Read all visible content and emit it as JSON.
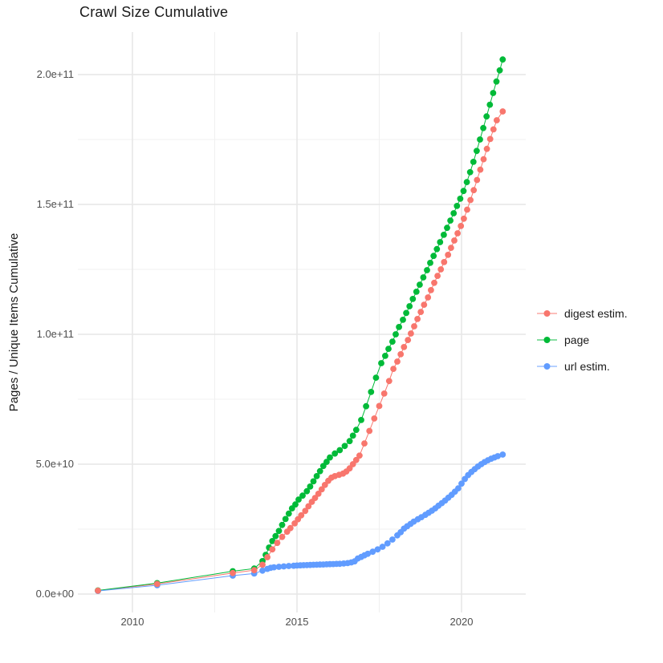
{
  "chart_data": {
    "type": "line",
    "title": "Crawl Size Cumulative",
    "xlabel": "",
    "ylabel": "Pages / Unique Items Cumulative",
    "legend_position": "right",
    "grid": true,
    "background_color": "#FFFFFF",
    "x_ticks": [
      {
        "label": "2010",
        "year": 2010
      },
      {
        "label": "2015",
        "year": 2015
      },
      {
        "label": "2020",
        "year": 2020
      }
    ],
    "x_minor_ticks": [
      2012.5,
      2017.5
    ],
    "y_ticks": [
      {
        "label": "0.0e+00",
        "v": 0
      },
      {
        "label": "5.0e+10",
        "v": 50
      },
      {
        "label": "1.0e+11",
        "v": 100
      },
      {
        "label": "1.5e+11",
        "v": 150
      },
      {
        "label": "2.0e+11",
        "v": 200
      }
    ],
    "y_unit_note": "values in billions of pages (1e9)",
    "xlim": [
      2008.33,
      2021.86
    ],
    "ylim_e9": [
      -9,
      216
    ],
    "series": [
      {
        "name": "digest estim.",
        "color": "#F8766D",
        "points": [
          [
            2008.95,
            1.3
          ],
          [
            2010.75,
            3.9
          ],
          [
            2013.05,
            8.1
          ],
          [
            2013.7,
            9.2
          ],
          [
            2013.95,
            11.3
          ],
          [
            2014.1,
            14.2
          ],
          [
            2014.25,
            17.2
          ],
          [
            2014.4,
            19.7
          ],
          [
            2014.55,
            22.0
          ],
          [
            2014.7,
            24.0
          ],
          [
            2014.8,
            25.4
          ],
          [
            2014.93,
            27.2
          ],
          [
            2015.03,
            28.8
          ],
          [
            2015.13,
            30.3
          ],
          [
            2015.25,
            32.0
          ],
          [
            2015.35,
            33.8
          ],
          [
            2015.45,
            35.5
          ],
          [
            2015.55,
            37.0
          ],
          [
            2015.65,
            38.6
          ],
          [
            2015.75,
            40.3
          ],
          [
            2015.85,
            42.0
          ],
          [
            2015.95,
            43.6
          ],
          [
            2016.05,
            44.8
          ],
          [
            2016.15,
            45.4
          ],
          [
            2016.28,
            45.9
          ],
          [
            2016.4,
            46.4
          ],
          [
            2016.5,
            47.2
          ],
          [
            2016.6,
            48.4
          ],
          [
            2016.7,
            50.0
          ],
          [
            2016.8,
            51.6
          ],
          [
            2016.9,
            53.3
          ],
          [
            2017.05,
            58.0
          ],
          [
            2017.2,
            62.8
          ],
          [
            2017.35,
            67.6
          ],
          [
            2017.5,
            72.4
          ],
          [
            2017.65,
            77.2
          ],
          [
            2017.8,
            82.0
          ],
          [
            2017.93,
            86.7
          ],
          [
            2018.05,
            89.5
          ],
          [
            2018.15,
            92.3
          ],
          [
            2018.25,
            95.1
          ],
          [
            2018.37,
            97.8
          ],
          [
            2018.46,
            100.3
          ],
          [
            2018.56,
            103.1
          ],
          [
            2018.66,
            105.9
          ],
          [
            2018.76,
            108.6
          ],
          [
            2018.86,
            111.4
          ],
          [
            2018.98,
            114.2
          ],
          [
            2019.07,
            117.0
          ],
          [
            2019.17,
            119.8
          ],
          [
            2019.27,
            122.5
          ],
          [
            2019.37,
            125.0
          ],
          [
            2019.47,
            127.8
          ],
          [
            2019.59,
            130.6
          ],
          [
            2019.68,
            133.3
          ],
          [
            2019.78,
            136.1
          ],
          [
            2019.88,
            138.9
          ],
          [
            2019.98,
            141.7
          ],
          [
            2020.07,
            144.5
          ],
          [
            2020.17,
            148.0
          ],
          [
            2020.27,
            151.7
          ],
          [
            2020.37,
            155.5
          ],
          [
            2020.47,
            159.4
          ],
          [
            2020.57,
            163.4
          ],
          [
            2020.67,
            167.4
          ],
          [
            2020.77,
            171.4
          ],
          [
            2020.87,
            175.2
          ],
          [
            2020.97,
            178.9
          ],
          [
            2021.07,
            182.4
          ],
          [
            2021.25,
            185.8
          ]
        ]
      },
      {
        "name": "page",
        "color": "#00BA38",
        "points": [
          [
            2008.95,
            1.4
          ],
          [
            2010.75,
            4.2
          ],
          [
            2013.05,
            8.8
          ],
          [
            2013.7,
            9.8
          ],
          [
            2013.95,
            12.7
          ],
          [
            2014.05,
            15.1
          ],
          [
            2014.15,
            17.9
          ],
          [
            2014.25,
            20.4
          ],
          [
            2014.35,
            22.3
          ],
          [
            2014.45,
            24.3
          ],
          [
            2014.55,
            26.6
          ],
          [
            2014.65,
            28.9
          ],
          [
            2014.75,
            31.0
          ],
          [
            2014.85,
            33.0
          ],
          [
            2014.95,
            34.5
          ],
          [
            2015.05,
            36.4
          ],
          [
            2015.17,
            37.9
          ],
          [
            2015.3,
            39.6
          ],
          [
            2015.4,
            41.4
          ],
          [
            2015.5,
            43.4
          ],
          [
            2015.6,
            45.4
          ],
          [
            2015.7,
            47.3
          ],
          [
            2015.8,
            49.3
          ],
          [
            2015.9,
            50.9
          ],
          [
            2016.0,
            52.6
          ],
          [
            2016.15,
            54.1
          ],
          [
            2016.3,
            55.4
          ],
          [
            2016.45,
            57.0
          ],
          [
            2016.6,
            58.9
          ],
          [
            2016.7,
            61.0
          ],
          [
            2016.8,
            63.2
          ],
          [
            2016.95,
            67.0
          ],
          [
            2017.1,
            72.3
          ],
          [
            2017.25,
            77.8
          ],
          [
            2017.4,
            83.3
          ],
          [
            2017.56,
            88.9
          ],
          [
            2017.68,
            91.7
          ],
          [
            2017.78,
            94.4
          ],
          [
            2017.9,
            97.2
          ],
          [
            2018.0,
            100.0
          ],
          [
            2018.1,
            102.8
          ],
          [
            2018.22,
            105.6
          ],
          [
            2018.32,
            108.2
          ],
          [
            2018.42,
            110.8
          ],
          [
            2018.52,
            113.6
          ],
          [
            2018.63,
            116.4
          ],
          [
            2018.73,
            119.1
          ],
          [
            2018.84,
            121.9
          ],
          [
            2018.95,
            124.7
          ],
          [
            2019.05,
            127.5
          ],
          [
            2019.15,
            130.2
          ],
          [
            2019.25,
            132.8
          ],
          [
            2019.35,
            135.5
          ],
          [
            2019.46,
            138.3
          ],
          [
            2019.56,
            141.0
          ],
          [
            2019.66,
            143.8
          ],
          [
            2019.76,
            146.6
          ],
          [
            2019.86,
            149.4
          ],
          [
            2019.96,
            152.2
          ],
          [
            2020.06,
            155.2
          ],
          [
            2020.16,
            158.6
          ],
          [
            2020.26,
            162.4
          ],
          [
            2020.36,
            166.4
          ],
          [
            2020.46,
            170.6
          ],
          [
            2020.56,
            175.0
          ],
          [
            2020.66,
            179.4
          ],
          [
            2020.76,
            183.9
          ],
          [
            2020.86,
            188.4
          ],
          [
            2020.96,
            192.9
          ],
          [
            2021.06,
            197.3
          ],
          [
            2021.16,
            201.6
          ],
          [
            2021.25,
            205.8
          ]
        ]
      },
      {
        "name": "url estim.",
        "color": "#619CFF",
        "points": [
          [
            2008.95,
            1.2
          ],
          [
            2010.75,
            3.4
          ],
          [
            2013.05,
            7.1
          ],
          [
            2013.7,
            7.9
          ],
          [
            2013.95,
            9.0
          ],
          [
            2014.1,
            9.7
          ],
          [
            2014.2,
            10.1
          ],
          [
            2014.3,
            10.3
          ],
          [
            2014.45,
            10.5
          ],
          [
            2014.6,
            10.65
          ],
          [
            2014.75,
            10.8
          ],
          [
            2014.9,
            10.9
          ],
          [
            2015.0,
            11.0
          ],
          [
            2015.1,
            11.05
          ],
          [
            2015.2,
            11.1
          ],
          [
            2015.3,
            11.15
          ],
          [
            2015.4,
            11.2
          ],
          [
            2015.5,
            11.25
          ],
          [
            2015.6,
            11.3
          ],
          [
            2015.7,
            11.35
          ],
          [
            2015.8,
            11.4
          ],
          [
            2015.9,
            11.45
          ],
          [
            2016.0,
            11.5
          ],
          [
            2016.1,
            11.55
          ],
          [
            2016.2,
            11.6
          ],
          [
            2016.3,
            11.65
          ],
          [
            2016.42,
            11.75
          ],
          [
            2016.54,
            11.9
          ],
          [
            2016.65,
            12.2
          ],
          [
            2016.75,
            12.6
          ],
          [
            2016.85,
            13.7
          ],
          [
            2016.95,
            14.3
          ],
          [
            2017.05,
            14.9
          ],
          [
            2017.15,
            15.5
          ],
          [
            2017.3,
            16.3
          ],
          [
            2017.45,
            17.2
          ],
          [
            2017.6,
            18.2
          ],
          [
            2017.75,
            19.5
          ],
          [
            2017.9,
            21.0
          ],
          [
            2018.05,
            22.6
          ],
          [
            2018.15,
            23.8
          ],
          [
            2018.25,
            25.2
          ],
          [
            2018.35,
            26.1
          ],
          [
            2018.45,
            27.0
          ],
          [
            2018.55,
            27.9
          ],
          [
            2018.67,
            28.8
          ],
          [
            2018.78,
            29.6
          ],
          [
            2018.9,
            30.5
          ],
          [
            2019.0,
            31.3
          ],
          [
            2019.1,
            32.1
          ],
          [
            2019.2,
            33.0
          ],
          [
            2019.3,
            34.0
          ],
          [
            2019.4,
            35.0
          ],
          [
            2019.5,
            36.0
          ],
          [
            2019.6,
            37.1
          ],
          [
            2019.7,
            38.2
          ],
          [
            2019.8,
            39.4
          ],
          [
            2019.9,
            40.7
          ],
          [
            2020.0,
            42.5
          ],
          [
            2020.1,
            44.3
          ],
          [
            2020.2,
            45.8
          ],
          [
            2020.3,
            47.0
          ],
          [
            2020.4,
            48.1
          ],
          [
            2020.5,
            49.1
          ],
          [
            2020.6,
            50.0
          ],
          [
            2020.7,
            50.8
          ],
          [
            2020.8,
            51.5
          ],
          [
            2020.9,
            52.1
          ],
          [
            2021.0,
            52.6
          ],
          [
            2021.1,
            53.1
          ],
          [
            2021.25,
            53.7
          ]
        ]
      }
    ]
  }
}
